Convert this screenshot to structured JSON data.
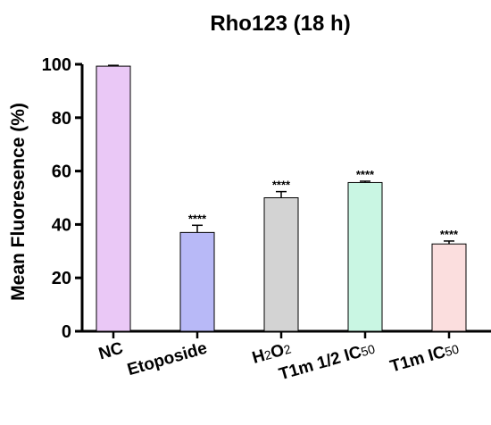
{
  "chart_data": {
    "type": "bar",
    "title": "Rho123 (18 h)",
    "xlabel": "",
    "ylabel": "Mean Fluoresence (%)",
    "ylim": [
      0,
      100
    ],
    "yticks": [
      0,
      20,
      40,
      60,
      80,
      100
    ],
    "grid": false,
    "categories": [
      "NC",
      "Etoposide",
      "H2O2",
      "T1m 1/2 IC50",
      "T1m IC50"
    ],
    "category_labels": [
      [
        {
          "t": "NC",
          "sub": false
        }
      ],
      [
        {
          "t": "Etoposide",
          "sub": false
        }
      ],
      [
        {
          "t": "H",
          "sub": false
        },
        {
          "t": "2",
          "sub": true
        },
        {
          "t": "O",
          "sub": false
        },
        {
          "t": "2",
          "sub": true
        }
      ],
      [
        {
          "t": "T1m 1/2 IC",
          "sub": false
        },
        {
          "t": "50",
          "sub": true
        }
      ],
      [
        {
          "t": "T1m IC",
          "sub": false
        },
        {
          "t": "50",
          "sub": true
        }
      ]
    ],
    "values": [
      99.3,
      37.0,
      50.0,
      55.7,
      32.7
    ],
    "errors": [
      0.3,
      2.7,
      2.3,
      0.5,
      1.1
    ],
    "significance": [
      "",
      "****",
      "****",
      "****",
      "****"
    ],
    "colors": [
      "#eac8f6",
      "#b8b9f7",
      "#d3d3d3",
      "#c9f6e3",
      "#fbdede"
    ]
  }
}
